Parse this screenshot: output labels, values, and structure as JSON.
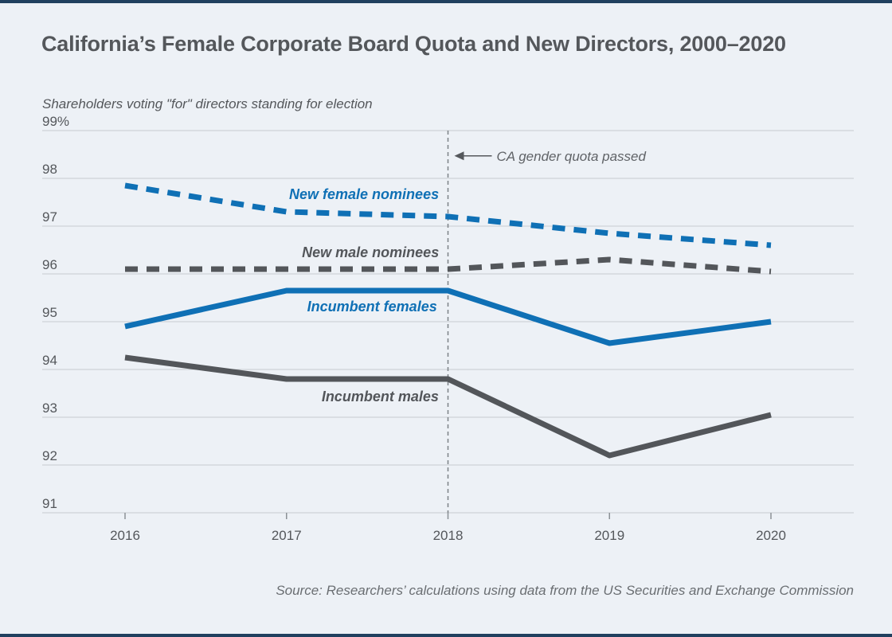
{
  "page": {
    "title": "California’s Female Corporate Board Quota and New Directors, 2000–2020",
    "source": "Source: Researchers’ calculations using data from the US Securities and Exchange Commission"
  },
  "chart_data": {
    "type": "line",
    "title": "California’s Female Corporate Board Quota and New Directors, 2000–2020",
    "subtitle": "Shareholders voting \"for\" directors standing for election",
    "x": [
      2016,
      2017,
      2018,
      2019,
      2020
    ],
    "x_tick_labels": [
      "2016",
      "2017",
      "2018",
      "2019",
      "2020"
    ],
    "y_axis": {
      "min": 91,
      "max": 99,
      "tick_step": 1,
      "tick_labels": [
        "99%",
        "98",
        "97",
        "96",
        "95",
        "94",
        "93",
        "92",
        "91"
      ]
    },
    "grid": true,
    "legend_position": "inline-labels",
    "series": [
      {
        "name": "New female nominees",
        "color": "#0f70b5",
        "style": "dashed",
        "values": [
          97.85,
          97.3,
          97.2,
          96.85,
          96.6
        ],
        "label_at": {
          "x": 2017.48,
          "y": 97.67
        }
      },
      {
        "name": "New male nominees",
        "color": "#53565a",
        "style": "dashed",
        "values": [
          96.1,
          96.1,
          96.1,
          96.3,
          96.05
        ],
        "label_at": {
          "x": 2017.52,
          "y": 96.45
        }
      },
      {
        "name": "Incumbent females",
        "color": "#0f70b5",
        "style": "solid",
        "values": [
          94.9,
          95.65,
          95.65,
          94.55,
          95.0
        ],
        "label_at": {
          "x": 2017.53,
          "y": 95.32
        }
      },
      {
        "name": "Incumbent males",
        "color": "#53565a",
        "style": "solid",
        "values": [
          94.25,
          93.8,
          93.8,
          92.2,
          93.05
        ],
        "label_at": {
          "x": 2017.58,
          "y": 93.43
        }
      }
    ],
    "annotation": {
      "text": "CA gender quota passed",
      "vline_x": 2018,
      "arrow_y": 98.47
    },
    "colors": {
      "accent_blue": "#0f70b5",
      "dark_gray": "#53565a",
      "background": "#edf1f6",
      "gridline": "#c8ccd0",
      "edge_bar": "#20405f"
    }
  }
}
